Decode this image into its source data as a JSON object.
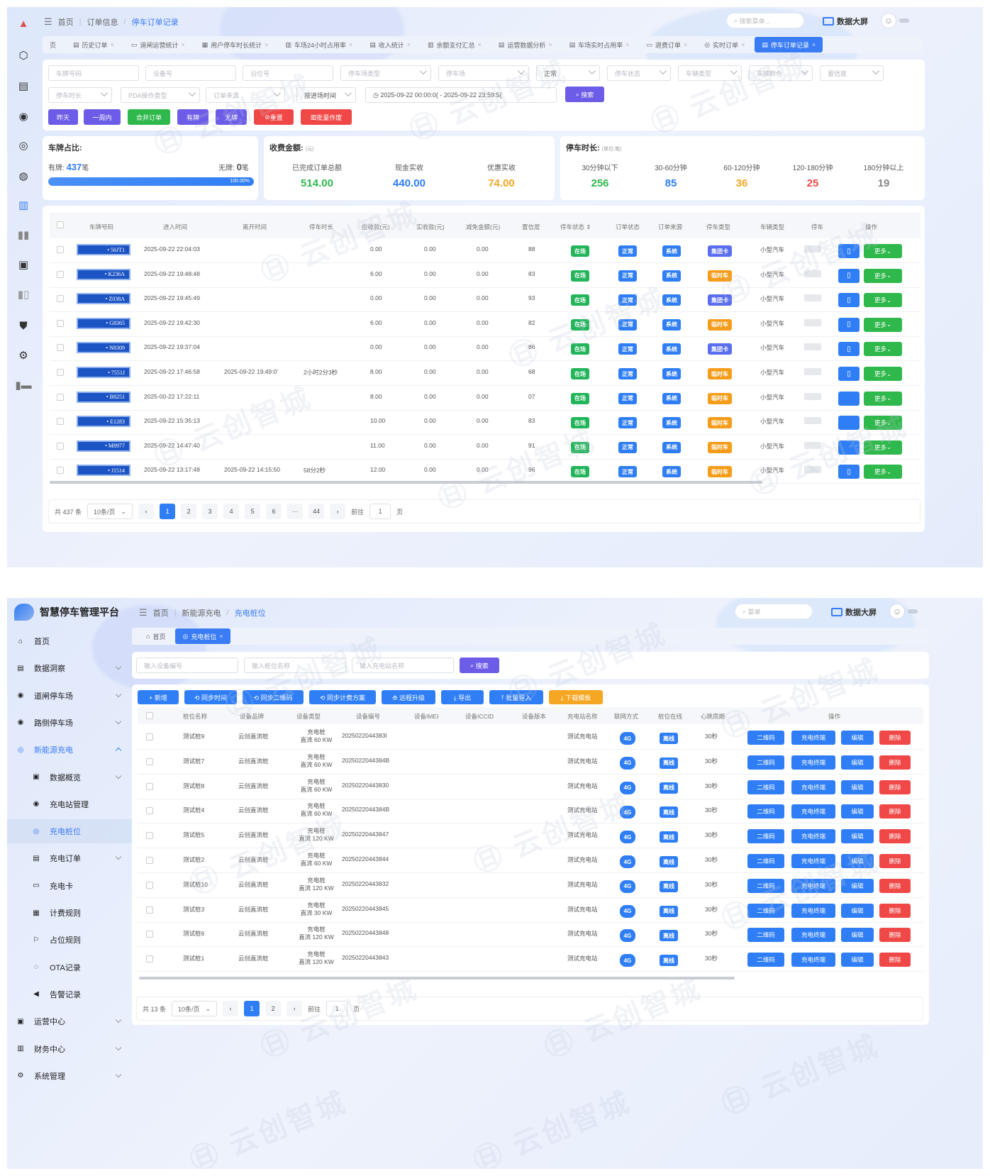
{
  "s1": {
    "breadcrumb": [
      "首页",
      "订单信息",
      "停车订单记录"
    ],
    "search_placeholder": "搜索菜单...",
    "bigscreen": "数据大屏",
    "tabs": [
      {
        "label": "页",
        "active": false
      },
      {
        "label": "历史订单",
        "active": false
      },
      {
        "label": "道闸运营统计",
        "active": false
      },
      {
        "label": "用户停车时长统计",
        "active": false
      },
      {
        "label": "车场24小时占用率",
        "active": false
      },
      {
        "label": "收入统计",
        "active": false
      },
      {
        "label": "余额支付汇总",
        "active": false
      },
      {
        "label": "运营数据分析",
        "active": false
      },
      {
        "label": "车场实时占用率",
        "active": false
      },
      {
        "label": "退费订单",
        "active": false
      },
      {
        "label": "实时订单",
        "active": false
      },
      {
        "label": "停车订单记录",
        "active": true
      }
    ],
    "filters_row1": [
      "车牌号码",
      "设备号",
      "泊位号",
      "停车场类型",
      "停车场",
      "正常",
      "停车状态",
      "车辆类型",
      "车牌颜色",
      "置信度"
    ],
    "filters_row2": [
      "停车时长",
      "PDA操作类型",
      "订单来源",
      "按进场时间"
    ],
    "date_range": "2025-09-22 00:00:0( - 2025-09-22 23:59:5{",
    "search_btn": "搜索",
    "quick_buttons": [
      "昨天",
      "一周内",
      "合并订单",
      "有牌",
      "无牌",
      "重置",
      "批量作废"
    ],
    "plate_ratio": {
      "title": "车牌占比:",
      "has_label": "有牌:",
      "has_value": "437",
      "unit": "笔",
      "none_label": "无牌:",
      "none_value": "0",
      "percent": "100.00%",
      "fill": 1.0
    },
    "fees": {
      "title": "收费金额:",
      "unit": "(元)",
      "items": [
        {
          "label": "已完成订单总额",
          "value": "514.00",
          "color": "#2fb84b"
        },
        {
          "label": "现金实收",
          "value": "440.00",
          "color": "#2f7ef5"
        },
        {
          "label": "优惠实收",
          "value": "74.00",
          "color": "#f5a623"
        }
      ]
    },
    "duration": {
      "title": "停车时长:",
      "unit": "(单位:笔)",
      "items": [
        {
          "label": "30分钟以下",
          "value": "256",
          "color": "#2fb84b"
        },
        {
          "label": "30-60分钟",
          "value": "85",
          "color": "#2f7ef5"
        },
        {
          "label": "60-120分钟",
          "value": "36",
          "color": "#f5a623"
        },
        {
          "label": "120-180分钟",
          "value": "25",
          "color": "#f04747"
        },
        {
          "label": "180分钟以上",
          "value": "19",
          "color": "#888"
        }
      ]
    },
    "table_headers": [
      "车牌号码",
      "进入时间",
      "离开时间",
      "停车时长",
      "应收款(元)",
      "实收款(元)",
      "减免金额(元)",
      "置信度",
      "停车状态 ⇕",
      "订单状态",
      "订单来源",
      "停车类型",
      "车辆类型",
      "停车",
      "操作"
    ],
    "rows": [
      {
        "plate": "• 56JT1",
        "in": "2025-09-22 22:04:03",
        "out": "",
        "dur": "",
        "due": "0.00",
        "paid": "0.00",
        "off": "0.00",
        "conf": "88",
        "state": "在场",
        "ostate": "正常",
        "src": "系统",
        "ptype": "集团卡",
        "vtype": "小型汽车",
        "ptype_color": "purple",
        "show_doc": true
      },
      {
        "plate": "• K236A",
        "in": "2025-09-22 19:48:48",
        "out": "",
        "dur": "",
        "due": "6.00",
        "paid": "0.00",
        "off": "0.00",
        "conf": "83",
        "state": "在场",
        "ostate": "正常",
        "src": "系统",
        "ptype": "临时车",
        "vtype": "小型汽车",
        "ptype_color": "orange",
        "show_doc": true
      },
      {
        "plate": "• Z038A",
        "in": "2025-09-22 19:45:49",
        "out": "",
        "dur": "",
        "due": "0.00",
        "paid": "0.00",
        "off": "0.00",
        "conf": "93",
        "state": "在场",
        "ostate": "正常",
        "src": "系统",
        "ptype": "集团卡",
        "vtype": "小型汽车",
        "ptype_color": "purple",
        "show_doc": true
      },
      {
        "plate": "• G8365",
        "in": "2025-09-22 19:42:30",
        "out": "",
        "dur": "",
        "due": "6.00",
        "paid": "0.00",
        "off": "0.00",
        "conf": "82",
        "state": "在场",
        "ostate": "正常",
        "src": "系统",
        "ptype": "临时车",
        "vtype": "小型汽车",
        "ptype_color": "orange",
        "show_doc": true
      },
      {
        "plate": "• N8309",
        "in": "2025-09-22 19:37:04",
        "out": "",
        "dur": "",
        "due": "0.00",
        "paid": "0.00",
        "off": "0.00",
        "conf": "86",
        "state": "在场",
        "ostate": "正常",
        "src": "系统",
        "ptype": "集团卡",
        "vtype": "小型汽车",
        "ptype_color": "purple",
        "show_doc": true
      },
      {
        "plate": "• 7551J",
        "in": "2025-09-22 17:46:58",
        "out": "2025-09-22 19:49:0'",
        "dur": "2小时2分3秒",
        "due": "8.00",
        "paid": "0.00",
        "off": "0.00",
        "conf": "68",
        "state": "在场",
        "ostate": "正常",
        "src": "系统",
        "ptype": "临时车",
        "vtype": "小型汽车",
        "ptype_color": "orange",
        "show_doc": true
      },
      {
        "plate": "• B8251",
        "in": "2025-00-22 17:22:11",
        "out": "",
        "dur": "",
        "due": "8.00",
        "paid": "0.00",
        "off": "0.00",
        "conf": "07",
        "state": "在场",
        "ostate": "正常",
        "src": "系统",
        "ptype": "临时车",
        "vtype": "小型汽车",
        "ptype_color": "orange",
        "show_doc": false
      },
      {
        "plate": "• E1283",
        "in": "2025-09-22 15:35:13",
        "out": "",
        "dur": "",
        "due": "10.00",
        "paid": "0.00",
        "off": "0.00",
        "conf": "83",
        "state": "在场",
        "ostate": "正常",
        "src": "系统",
        "ptype": "临时车",
        "vtype": "小型汽车",
        "ptype_color": "orange",
        "show_doc": false
      },
      {
        "plate": "• M8977",
        "in": "2025-09-22 14:47:40",
        "out": "",
        "dur": "",
        "due": "11.00",
        "paid": "0.00",
        "off": "0.00",
        "conf": "91",
        "state": "在场",
        "ostate": "正常",
        "src": "系统",
        "ptype": "临时车",
        "vtype": "小型汽车",
        "ptype_color": "orange",
        "show_doc": false
      },
      {
        "plate": "• J1514",
        "in": "2025-09-22 13:17:48",
        "out": "2025-09-22 14:15:50",
        "dur": "58分2秒",
        "due": "12.00",
        "paid": "0.00",
        "off": "0.00",
        "conf": "96",
        "state": "在场",
        "ostate": "正常",
        "src": "系统",
        "ptype": "临时车",
        "vtype": "小型汽车",
        "ptype_color": "orange",
        "show_doc": true
      }
    ],
    "more_label": "更多",
    "pager": {
      "total": "共 437 条",
      "size": "10条/页",
      "pages": [
        "1",
        "2",
        "3",
        "4",
        "5",
        "6",
        "···",
        "44"
      ],
      "goto": "前往",
      "goto_val": "1",
      "page_unit": "页"
    }
  },
  "s2": {
    "app_name": "智慧停车管理平台",
    "breadcrumb": [
      "首页",
      "新能源充电",
      "充电桩位"
    ],
    "search_placeholder": "菜单",
    "bigscreen": "数据大屏",
    "tabs": [
      {
        "label": "首页",
        "active": false
      },
      {
        "label": "充电桩位",
        "active": true
      }
    ],
    "menu": [
      {
        "label": "首页",
        "icon": "⌂",
        "level": 0,
        "state": ""
      },
      {
        "label": "数据洞察",
        "icon": "▤",
        "level": 0,
        "state": "chev"
      },
      {
        "label": "道闸停车场",
        "icon": "◉",
        "level": 0,
        "state": "chev"
      },
      {
        "label": "路侧停车场",
        "icon": "◉",
        "level": 0,
        "state": "chev"
      },
      {
        "label": "新能源充电",
        "icon": "◎",
        "level": 0,
        "state": "open"
      },
      {
        "label": "数据概览",
        "icon": "▣",
        "level": 1,
        "state": "chev"
      },
      {
        "label": "充电站管理",
        "icon": "◉",
        "level": 1,
        "state": ""
      },
      {
        "label": "充电桩位",
        "icon": "◎",
        "level": 1,
        "state": "active"
      },
      {
        "label": "充电订单",
        "icon": "▤",
        "level": 1,
        "state": "chev"
      },
      {
        "label": "充电卡",
        "icon": "▭",
        "level": 1,
        "state": ""
      },
      {
        "label": "计费规则",
        "icon": "▦",
        "level": 1,
        "state": ""
      },
      {
        "label": "占位规则",
        "icon": "⚐",
        "level": 1,
        "state": ""
      },
      {
        "label": "OTA记录",
        "icon": "◌",
        "level": 1,
        "state": ""
      },
      {
        "label": "告警记录",
        "icon": "◀",
        "level": 1,
        "state": ""
      },
      {
        "label": "运营中心",
        "icon": "▣",
        "level": 0,
        "state": "chev"
      },
      {
        "label": "财务中心",
        "icon": "▥",
        "level": 0,
        "state": "chev"
      },
      {
        "label": "系统管理",
        "icon": "⚙",
        "level": 0,
        "state": "chev"
      }
    ],
    "search_inputs": [
      "输入设备编号",
      "输入桩位名称",
      "输入充电站名称"
    ],
    "search_btn": "搜索",
    "toolbar": [
      {
        "label": "+ 新增",
        "color": "blue"
      },
      {
        "label": "⟲ 同步时间",
        "color": "blue"
      },
      {
        "label": "⟲ 同步二维码",
        "color": "blue"
      },
      {
        "label": "⟲ 同步计费方案",
        "color": "blue"
      },
      {
        "label": "⟰ 远程升级",
        "color": "blue"
      },
      {
        "label": "⤓ 导出",
        "color": "blue"
      },
      {
        "label": "⤒ 批量导入",
        "color": "blue"
      },
      {
        "label": "⤓ 下载模板",
        "color": "orange"
      }
    ],
    "headers": [
      "桩位名称",
      "设备品牌",
      "设备类型",
      "设备编号",
      "设备IMEI",
      "设备ICCID",
      "设备版本",
      "充电站名称",
      "联网方式",
      "桩位在线",
      "心跳周期",
      "操作"
    ],
    "rows": [
      {
        "name": "测试桩9",
        "brand": "云创直流桩",
        "type1": "充电桩",
        "type2": "直流 60 KW",
        "no": "2025022044383l",
        "station": "测试充电站",
        "net": "4G",
        "online": "离线",
        "beat": "30秒"
      },
      {
        "name": "测试桩7",
        "brand": "云创直流桩",
        "type1": "充电桩",
        "type2": "直流 60 KW",
        "no": "2025022044384B",
        "station": "测试充电站",
        "net": "4G",
        "online": "离线",
        "beat": "30秒"
      },
      {
        "name": "测试桩8",
        "brand": "云创直流桩",
        "type1": "充电桩",
        "type2": "直流 60 KW",
        "no": "20250220443830",
        "station": "测试充电站",
        "net": "4G",
        "online": "离线",
        "beat": "30秒"
      },
      {
        "name": "测试桩4",
        "brand": "云创直流桩",
        "type1": "充电桩",
        "type2": "直流 60 KW",
        "no": "2025022044384B",
        "station": "测试充电站",
        "net": "4G",
        "online": "离线",
        "beat": "30秒"
      },
      {
        "name": "测试桩5",
        "brand": "云创直流桩",
        "type1": "充电桩",
        "type2": "直流 120 KW",
        "no": "20250220443847",
        "station": "测试充电站",
        "net": "4G",
        "online": "离线",
        "beat": "30秒"
      },
      {
        "name": "测试桩2",
        "brand": "云创直流桩",
        "type1": "充电桩",
        "type2": "直流 60 KW",
        "no": "20250220443844",
        "station": "测试充电站",
        "net": "4G",
        "online": "离线",
        "beat": "30秒"
      },
      {
        "name": "测试桩10",
        "brand": "云创直流桩",
        "type1": "充电桩",
        "type2": "直流 120 KW",
        "no": "20250220443832",
        "station": "测试充电站",
        "net": "4G",
        "online": "离线",
        "beat": "30秒"
      },
      {
        "name": "测试桩3",
        "brand": "云创直流桩",
        "type1": "充电桩",
        "type2": "直流 30 KW",
        "no": "20250220443845",
        "station": "测试充电站",
        "net": "4G",
        "online": "离线",
        "beat": "30秒"
      },
      {
        "name": "测试桩6",
        "brand": "云创直流桩",
        "type1": "充电桩",
        "type2": "直流 120 KW",
        "no": "20250220443848",
        "station": "测试充电站",
        "net": "4G",
        "online": "离线",
        "beat": "30秒"
      },
      {
        "name": "测试桩1",
        "brand": "云创直流桩",
        "type1": "充电桩",
        "type2": "直流 120 KW",
        "no": "20250220443843",
        "station": "测试充电站",
        "net": "4G",
        "online": "离线",
        "beat": "30秒"
      }
    ],
    "ops": [
      "二维码",
      "充电终端",
      "编辑",
      "删除"
    ],
    "pager": {
      "total": "共 13 条",
      "size": "10条/页",
      "pages": [
        "1",
        "2"
      ],
      "goto": "前往",
      "goto_val": "1",
      "page_unit": "页"
    }
  }
}
